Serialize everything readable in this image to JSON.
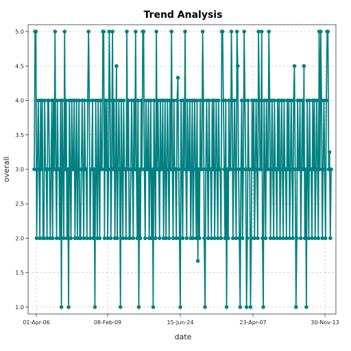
{
  "chart_data": {
    "type": "line",
    "title": "Trend Analysis",
    "xlabel": "date",
    "ylabel": "overall",
    "x_tick_labels": [
      "01-Apr-06",
      "08-Feb-09",
      "15-Jun-24",
      "23-Apr-07",
      "30-Nov-13"
    ],
    "y_tick_labels": [
      "1.0",
      "1.5",
      "2.0",
      "2.5",
      "3.0",
      "3.5",
      "4.0",
      "4.5",
      "5.0"
    ],
    "ylim": [
      0.9,
      5.1
    ],
    "y_ticks": [
      1.0,
      1.5,
      2.0,
      2.5,
      3.0,
      3.5,
      4.0,
      4.5,
      5.0
    ],
    "grid": true,
    "series": [
      {
        "color": "#008080",
        "marker": "circle",
        "values": [
          3,
          5,
          5,
          2,
          3,
          4,
          3,
          2,
          4,
          3,
          4,
          2,
          2,
          4,
          3,
          3,
          2,
          4,
          4,
          3,
          2,
          3,
          4,
          2,
          4,
          3,
          5,
          3,
          2,
          4,
          3,
          3,
          2,
          4,
          1,
          4,
          3,
          2,
          5,
          3,
          4,
          2,
          3,
          1,
          4,
          3,
          2,
          4,
          3,
          3,
          4,
          2,
          3,
          4,
          2,
          3,
          4,
          2,
          2,
          3,
          4,
          3,
          2,
          4,
          3,
          3,
          2,
          4,
          5,
          4,
          2,
          3,
          3,
          4,
          2,
          3,
          1,
          4,
          3,
          2,
          4,
          3,
          2,
          4,
          3,
          3,
          5,
          5,
          2,
          4,
          3,
          4,
          2,
          3,
          5,
          4,
          2,
          3,
          5,
          3,
          4,
          2,
          3,
          4.5,
          2,
          3,
          4,
          3,
          1,
          4,
          3,
          2,
          4,
          3,
          3,
          2,
          5,
          3,
          4,
          2,
          2,
          3,
          4,
          3,
          2,
          4,
          3,
          5,
          3,
          2,
          4,
          1,
          3,
          2,
          4,
          3,
          5,
          5,
          3,
          2,
          4,
          3,
          3,
          4,
          2,
          3,
          4,
          2,
          3,
          1,
          4,
          3,
          2,
          5,
          3,
          4,
          3,
          2,
          4,
          3,
          3,
          4,
          2,
          3,
          4,
          2,
          3,
          4,
          3,
          2,
          4,
          3,
          5,
          3,
          2,
          4,
          3,
          3,
          2,
          4,
          4.33,
          3,
          2,
          1,
          4,
          3,
          2,
          4,
          3,
          5,
          3,
          2,
          4,
          3,
          3,
          4,
          2,
          3,
          4,
          2,
          3,
          4,
          3,
          2,
          4,
          1.67,
          3,
          2,
          4,
          3,
          3,
          5,
          4,
          2,
          1,
          3,
          4,
          3,
          2,
          4,
          3,
          3,
          2,
          4,
          3,
          4,
          2,
          3,
          4,
          3,
          2,
          4,
          3,
          3,
          2,
          5,
          5,
          4,
          3,
          2,
          4,
          1,
          3,
          2,
          4,
          3,
          3,
          5,
          4,
          2,
          3,
          4,
          3,
          2,
          5,
          4.5,
          3,
          2,
          1,
          3,
          4,
          2,
          3,
          5,
          4,
          3,
          1,
          2,
          4,
          3,
          3,
          1,
          2,
          4,
          3,
          4,
          2,
          3,
          4,
          3,
          2,
          5,
          4,
          3,
          3,
          5,
          2,
          1,
          4,
          3,
          2,
          4,
          3,
          3,
          5,
          4,
          2,
          3,
          4,
          3,
          2,
          4,
          3,
          3,
          2,
          4,
          3,
          4,
          2,
          3,
          4,
          3,
          2,
          4,
          3,
          3,
          2,
          4,
          3,
          4,
          2,
          3,
          4,
          3,
          2,
          4,
          4.5,
          3,
          1,
          2,
          4,
          3,
          3,
          4,
          2,
          3,
          4,
          3,
          4.5,
          2,
          3,
          1,
          4,
          3,
          2,
          4,
          3,
          3,
          2,
          4,
          3,
          4,
          2,
          3,
          4,
          3,
          2,
          5,
          3,
          5,
          4,
          2,
          3,
          4,
          3,
          2,
          4,
          5,
          5,
          3,
          3.25,
          2,
          3
        ]
      }
    ]
  }
}
